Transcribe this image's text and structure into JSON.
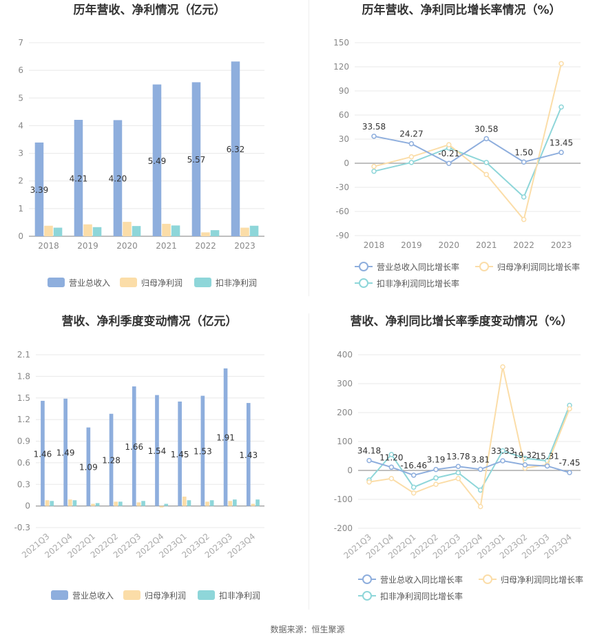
{
  "footer": {
    "source": "数据来源：恒生聚源"
  },
  "colors": {
    "revenue": "#8eaedd",
    "net_profit": "#fbdda8",
    "deducted_profit": "#8ed6d9"
  },
  "chart_data": [
    {
      "type": "bar",
      "title": "历年营收、净利情况（亿元）",
      "categories": [
        "2018",
        "2019",
        "2020",
        "2021",
        "2022",
        "2023"
      ],
      "ylim": [
        0,
        7
      ],
      "yticks": [
        "0",
        "1",
        "2",
        "3",
        "4",
        "5",
        "6",
        "7"
      ],
      "legend_position": "bottom",
      "series": [
        {
          "name": "营业总收入",
          "values": [
            3.39,
            4.21,
            4.2,
            5.49,
            5.57,
            6.32
          ],
          "labels": [
            "3.39",
            "4.21",
            "4.20",
            "5.49",
            "5.57",
            "6.32"
          ]
        },
        {
          "name": "归母净利润",
          "values": [
            0.38,
            0.43,
            0.52,
            0.45,
            0.14,
            0.31
          ]
        },
        {
          "name": "扣非净利润",
          "values": [
            0.31,
            0.33,
            0.37,
            0.39,
            0.22,
            0.38
          ]
        }
      ]
    },
    {
      "type": "line",
      "title": "历年营收、净利同比增长率情况（%）",
      "categories": [
        "2018",
        "2019",
        "2020",
        "2021",
        "2022",
        "2023"
      ],
      "ylim": [
        -90,
        150
      ],
      "yticks": [
        "-90",
        "-60",
        "-30",
        "0",
        "30",
        "60",
        "90",
        "120",
        "150"
      ],
      "legend_position": "bottom",
      "series": [
        {
          "name": "营业总收入同比增长率",
          "values": [
            33.58,
            24.27,
            -0.21,
            30.58,
            1.5,
            13.45
          ],
          "labels": [
            "33.58",
            "24.27",
            "-0.21",
            "30.58",
            "1.50",
            "13.45"
          ]
        },
        {
          "name": "归母净利润同比增长率",
          "values": [
            -4,
            8,
            23,
            -14,
            -70,
            124
          ]
        },
        {
          "name": "扣非净利润同比增长率",
          "values": [
            -10,
            1,
            19,
            1,
            -42,
            70
          ]
        }
      ]
    },
    {
      "type": "bar",
      "title": "营收、净利季度变动情况（亿元）",
      "categories": [
        "2021Q3",
        "2021Q4",
        "2022Q1",
        "2022Q2",
        "2022Q3",
        "2022Q4",
        "2023Q1",
        "2023Q2",
        "2023Q3",
        "2023Q4"
      ],
      "ylim": [
        -0.3,
        2.1
      ],
      "yticks": [
        "-0.3",
        "0",
        "0.3",
        "0.6",
        "0.9",
        "1.2",
        "1.5",
        "1.8",
        "2.1"
      ],
      "legend_position": "bottom",
      "series": [
        {
          "name": "营业总收入",
          "values": [
            1.46,
            1.49,
            1.09,
            1.28,
            1.66,
            1.54,
            1.45,
            1.53,
            1.91,
            1.43
          ],
          "labels": [
            "1.46",
            "1.49",
            "1.09",
            "1.28",
            "1.66",
            "1.54",
            "1.45",
            "1.53",
            "1.91",
            "1.43"
          ]
        },
        {
          "name": "归母净利润",
          "values": [
            0.08,
            0.09,
            0.03,
            0.06,
            0.05,
            -0.02,
            0.13,
            0.06,
            0.07,
            0.03
          ]
        },
        {
          "name": "扣非净利润",
          "values": [
            0.07,
            0.08,
            0.04,
            0.06,
            0.07,
            0.03,
            0.08,
            0.08,
            0.09,
            0.09
          ]
        }
      ]
    },
    {
      "type": "line",
      "title": "营收、净利同比增长率季度变动情况（%）",
      "categories": [
        "2021Q3",
        "2021Q4",
        "2022Q1",
        "2022Q2",
        "2022Q3",
        "2022Q4",
        "2023Q1",
        "2023Q2",
        "2023Q3",
        "2023Q4"
      ],
      "ylim": [
        -200,
        400
      ],
      "yticks": [
        "-200",
        "-100",
        "0",
        "100",
        "200",
        "300",
        "400"
      ],
      "legend_position": "bottom",
      "series": [
        {
          "name": "营业总收入同比增长率",
          "values": [
            34.18,
            11.2,
            -16.46,
            3.19,
            13.78,
            3.81,
            33.33,
            19.32,
            15.31,
            -7.45
          ],
          "labels": [
            "34.18",
            "11.20",
            "-16.46",
            "3.19",
            "13.78",
            "3.81",
            "33.33",
            "19.32",
            "15.31",
            "-7.45"
          ]
        },
        {
          "name": "归母净利润同比增长率",
          "values": [
            -40,
            -28,
            -78,
            -48,
            -28,
            -125,
            358,
            8,
            20,
            213
          ]
        },
        {
          "name": "扣非净利润同比增长率",
          "values": [
            -33,
            55,
            -58,
            -26,
            -8,
            -68,
            68,
            42,
            33,
            225
          ]
        }
      ]
    }
  ]
}
